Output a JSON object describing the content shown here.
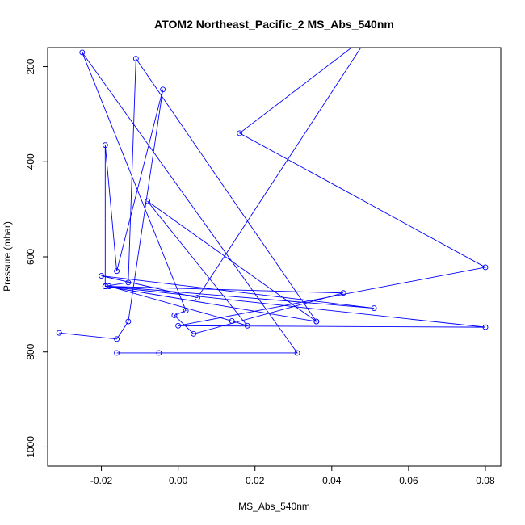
{
  "chart_data": {
    "type": "line",
    "title": "ATOM2 Northeast_Pacific_2 MS_Abs_540nm",
    "xlabel": "MS_Abs_540nm",
    "ylabel": "Pressure (mbar)",
    "xlim": [
      -0.034,
      0.084
    ],
    "ylim": [
      1040,
      160
    ],
    "y_reversed": true,
    "x_ticks": [
      -0.02,
      0.0,
      0.02,
      0.04,
      0.06,
      0.08
    ],
    "x_tick_labels": [
      "-0.02",
      "0.00",
      "0.02",
      "0.04",
      "0.06",
      "0.08"
    ],
    "y_ticks": [
      200,
      400,
      600,
      800,
      1000
    ],
    "y_tick_labels": [
      "200",
      "400",
      "600",
      "800",
      "1000"
    ],
    "grid": false,
    "series_color": "#0000ff",
    "series": [
      {
        "x": [
          -0.031,
          -0.016,
          -0.013,
          -0.004,
          -0.016,
          -0.019,
          -0.019,
          0.036,
          -0.011,
          -0.013,
          -0.019,
          0.08,
          0.0,
          0.08,
          0.016,
          0.05,
          0.005,
          -0.02,
          0.051,
          -0.018,
          0.014,
          0.018,
          -0.008,
          0.036,
          -0.019,
          0.043,
          0.004,
          -0.001,
          0.002,
          -0.025,
          0.031,
          -0.005,
          -0.016
        ],
        "y": [
          760,
          773,
          736,
          248,
          630,
          365,
          662,
          736,
          183,
          654,
          662,
          748,
          745,
          622,
          340,
          130,
          686,
          640,
          708,
          662,
          735,
          745,
          483,
          736,
          662,
          676,
          762,
          723,
          713,
          170,
          802,
          802,
          802
        ]
      }
    ]
  }
}
